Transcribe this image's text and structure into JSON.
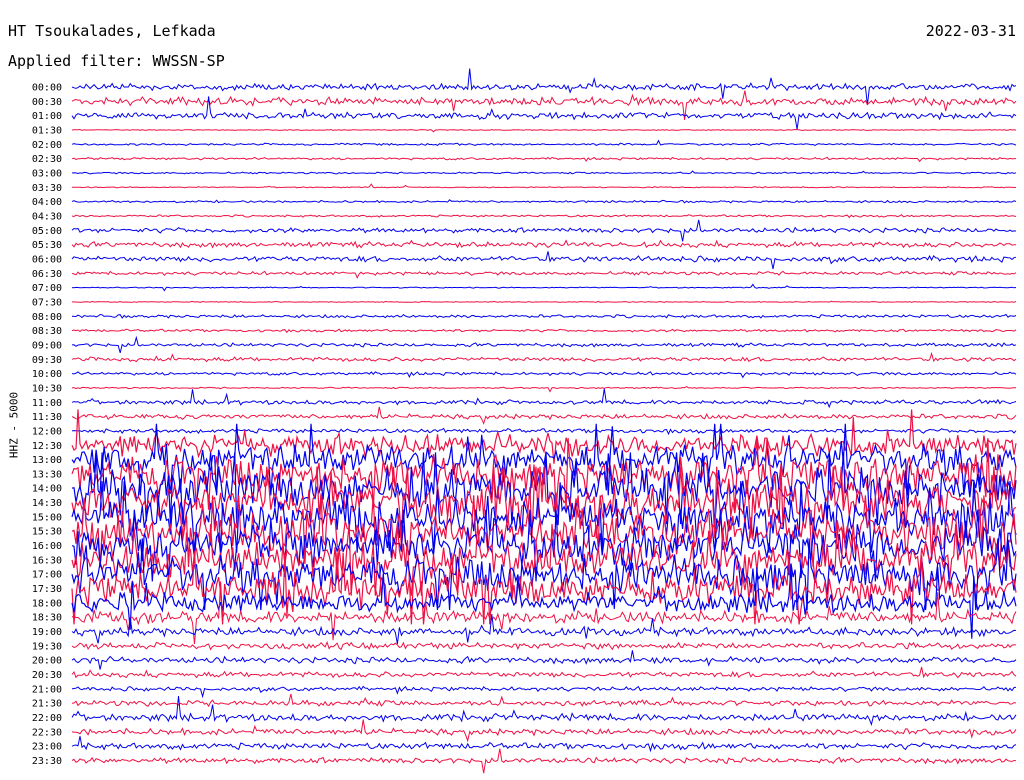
{
  "header": {
    "station": "HT Tsoukalades, Lefkada",
    "date": "2022-03-31",
    "filter": "Applied filter: WWSSN-SP"
  },
  "channel_label": "HHZ - 5000",
  "colors": {
    "trace_a": "#0000ee",
    "trace_b": "#ee1144"
  },
  "chart_data": {
    "type": "line",
    "title": "HT Tsoukalades, Lefkada",
    "subtitle": "Applied filter: WWSSN-SP",
    "ylabel": "HHZ - 5000",
    "xlabel": "",
    "grid": false,
    "legend": "none",
    "row_labels": [
      "00:00",
      "00:30",
      "01:00",
      "01:30",
      "02:00",
      "02:30",
      "03:00",
      "03:30",
      "04:00",
      "04:30",
      "05:00",
      "05:30",
      "06:00",
      "06:30",
      "07:00",
      "07:30",
      "08:00",
      "08:30",
      "09:00",
      "09:30",
      "10:00",
      "10:30",
      "11:00",
      "11:30",
      "12:00",
      "12:30",
      "13:00",
      "13:30",
      "14:00",
      "14:30",
      "15:00",
      "15:30",
      "16:00",
      "16:30",
      "17:00",
      "17:30",
      "18:00",
      "18:30",
      "19:00",
      "19:30",
      "20:00",
      "20:30",
      "21:00",
      "21:30",
      "22:00",
      "22:30",
      "23:00",
      "23:30"
    ],
    "row_activity": [
      0.45,
      0.55,
      0.45,
      0.06,
      0.14,
      0.16,
      0.12,
      0.08,
      0.15,
      0.15,
      0.35,
      0.38,
      0.4,
      0.25,
      0.08,
      0.06,
      0.22,
      0.18,
      0.25,
      0.3,
      0.22,
      0.1,
      0.3,
      0.35,
      0.3,
      1.6,
      2.2,
      2.6,
      2.8,
      2.8,
      2.8,
      2.8,
      2.8,
      2.8,
      2.6,
      2.2,
      1.4,
      0.9,
      0.6,
      0.45,
      0.45,
      0.4,
      0.3,
      0.4,
      0.5,
      0.45,
      0.45,
      0.4
    ]
  }
}
